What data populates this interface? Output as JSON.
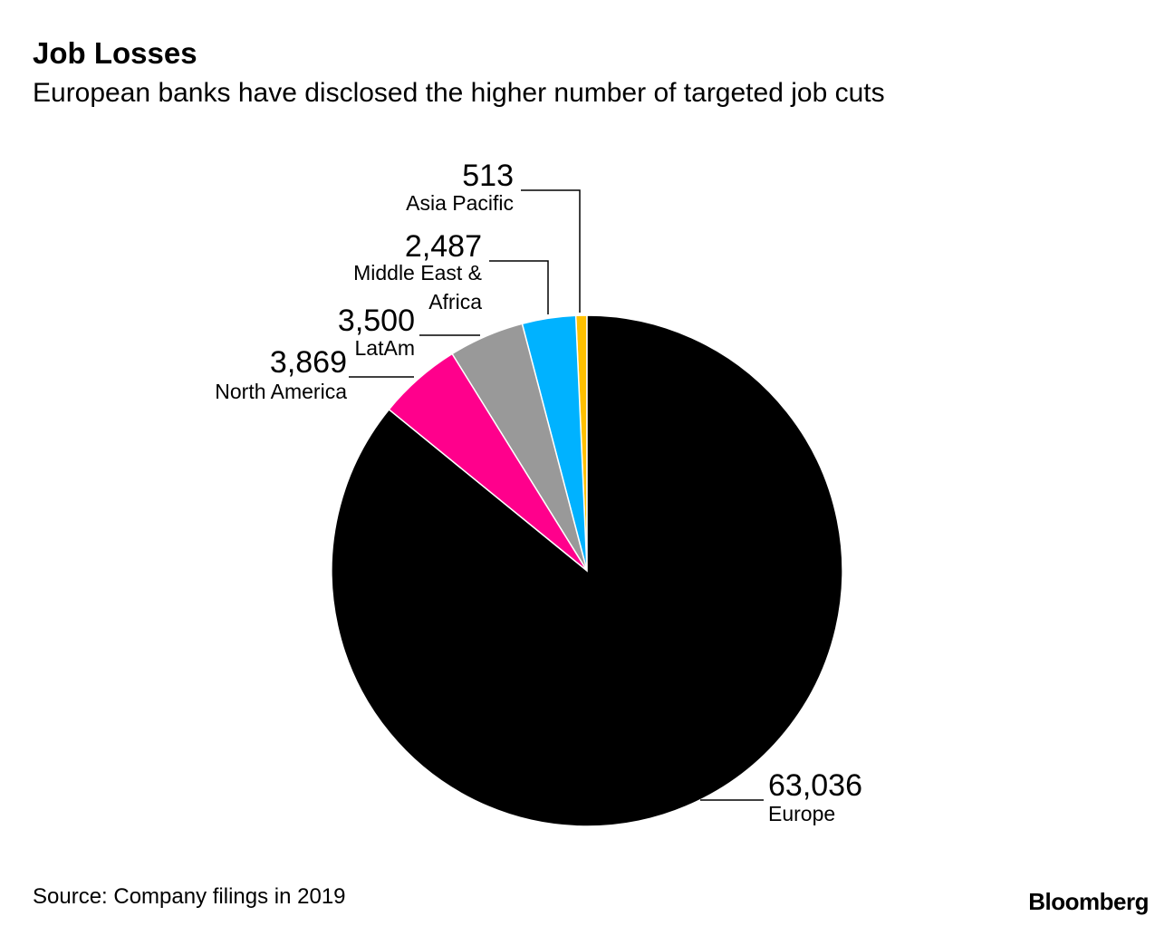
{
  "header": {
    "title": "Job Losses",
    "subtitle": "European banks have disclosed the higher number of targeted job cuts"
  },
  "footer": {
    "source": "Source: Company filings in 2019",
    "brand": "Bloomberg"
  },
  "chart_data": {
    "type": "pie",
    "title": "Job Losses",
    "subtitle": "European banks have disclosed the higher number of targeted job cuts",
    "slices": [
      {
        "name": "Asia Pacific",
        "value": 513,
        "value_label": "513",
        "color": "#ffc000"
      },
      {
        "name": "Middle East & Africa",
        "value": 2487,
        "value_label": "2,487",
        "color": "#00b2ff"
      },
      {
        "name": "LatAm",
        "value": 3500,
        "value_label": "3,500",
        "color": "#999999"
      },
      {
        "name": "North America",
        "value": 3869,
        "value_label": "3,869",
        "color": "#ff008c"
      },
      {
        "name": "Europe",
        "value": 63036,
        "value_label": "63,036",
        "color": "#000000"
      }
    ]
  }
}
